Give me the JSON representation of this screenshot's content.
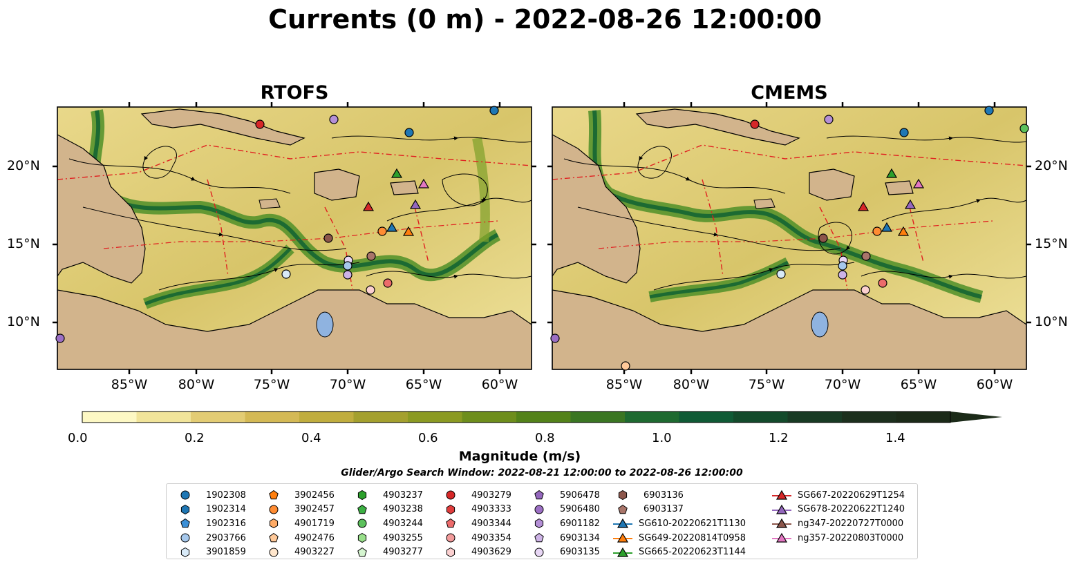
{
  "title": "Currents (0 m) - 2022-08-26 12:00:00",
  "panels": [
    {
      "title": "RTOFS"
    },
    {
      "title": "CMEMS"
    }
  ],
  "x_ticks": [
    "85°W",
    "80°W",
    "75°W",
    "70°W",
    "65°W",
    "60°W"
  ],
  "y_ticks": [
    "20°N",
    "15°N",
    "10°N"
  ],
  "colorbar": {
    "ticks": [
      "0.0",
      "0.2",
      "0.4",
      "0.6",
      "0.8",
      "1.0",
      "1.2",
      "1.4"
    ],
    "label": "Magnitude (m/s)",
    "colors": [
      "#fdf8c4",
      "#f1e49a",
      "#e3cc74",
      "#d4b955",
      "#c0ad3e",
      "#a4a02e",
      "#8b9a22",
      "#6e8e1c",
      "#538219",
      "#3a7622",
      "#1e6a30",
      "#0f5a35",
      "#134a2b",
      "#183a24",
      "#1c2f1d",
      "#1b2a18"
    ]
  },
  "search_window": "Glider/Argo Search Window: 2022-08-21 12:00:00 to 2022-08-26 12:00:00",
  "legend": [
    [
      {
        "label": "1902308",
        "marker": "circle",
        "color": "#1f77b4"
      },
      {
        "label": "1902314",
        "marker": "hexagon",
        "color": "#1f77b4"
      },
      {
        "label": "1902316",
        "marker": "pentagon",
        "color": "#3b8fd6"
      },
      {
        "label": "2903766",
        "marker": "circle",
        "color": "#a6c8ec"
      },
      {
        "label": "3901859",
        "marker": "hexagon",
        "color": "#d8eaf8"
      }
    ],
    [
      {
        "label": "3902456",
        "marker": "pentagon",
        "color": "#ff7f0e"
      },
      {
        "label": "3902457",
        "marker": "circle",
        "color": "#ff8c33"
      },
      {
        "label": "4901719",
        "marker": "hexagon",
        "color": "#ffab66"
      },
      {
        "label": "4902476",
        "marker": "pentagon",
        "color": "#ffc999"
      },
      {
        "label": "4903227",
        "marker": "circle",
        "color": "#ffe6cc"
      }
    ],
    [
      {
        "label": "4903237",
        "marker": "hexagon",
        "color": "#2ca02c"
      },
      {
        "label": "4903238",
        "marker": "pentagon",
        "color": "#3cb043"
      },
      {
        "label": "4903244",
        "marker": "circle",
        "color": "#5cc15c"
      },
      {
        "label": "4903255",
        "marker": "hexagon",
        "color": "#98df8a"
      },
      {
        "label": "4903277",
        "marker": "pentagon",
        "color": "#d5f5d0"
      }
    ],
    [
      {
        "label": "4903279",
        "marker": "circle",
        "color": "#d62728"
      },
      {
        "label": "4903333",
        "marker": "hexagon",
        "color": "#e03c3c"
      },
      {
        "label": "4903344",
        "marker": "pentagon",
        "color": "#ec6b6b"
      },
      {
        "label": "4903354",
        "marker": "circle",
        "color": "#f29b9b"
      },
      {
        "label": "4903629",
        "marker": "hexagon",
        "color": "#fbd0d0"
      }
    ],
    [
      {
        "label": "5906478",
        "marker": "pentagon",
        "color": "#9467bd"
      },
      {
        "label": "5906480",
        "marker": "circle",
        "color": "#9c6fc4"
      },
      {
        "label": "6901182",
        "marker": "hexagon",
        "color": "#b48fd6"
      },
      {
        "label": "6903134",
        "marker": "pentagon",
        "color": "#cdb3e6"
      },
      {
        "label": "6903135",
        "marker": "circle",
        "color": "#e8d7f5"
      }
    ],
    [
      {
        "label": "6903136",
        "marker": "hexagon",
        "color": "#8c564b"
      },
      {
        "label": "6903137",
        "marker": "pentagon",
        "color": "#a9756a"
      },
      {
        "label": "SG610-20220621T1130",
        "marker": "triangle-line",
        "color": "#1f77b4"
      },
      {
        "label": "SG649-20220814T0958",
        "marker": "triangle-line",
        "color": "#ff7f0e"
      },
      {
        "label": "SG665-20220623T1144",
        "marker": "triangle-line",
        "color": "#2ca02c"
      }
    ],
    [
      {
        "label": "SG667-20220629T1254",
        "marker": "triangle-line",
        "color": "#d62728"
      },
      {
        "label": "SG678-20220622T1240",
        "marker": "triangle-line",
        "color": "#9467bd"
      },
      {
        "label": "ng347-20220727T0000",
        "marker": "triangle-line",
        "color": "#8c564b"
      },
      {
        "label": "ng357-20220803T0000",
        "marker": "triangle-line",
        "color": "#e377c2"
      }
    ]
  ]
}
